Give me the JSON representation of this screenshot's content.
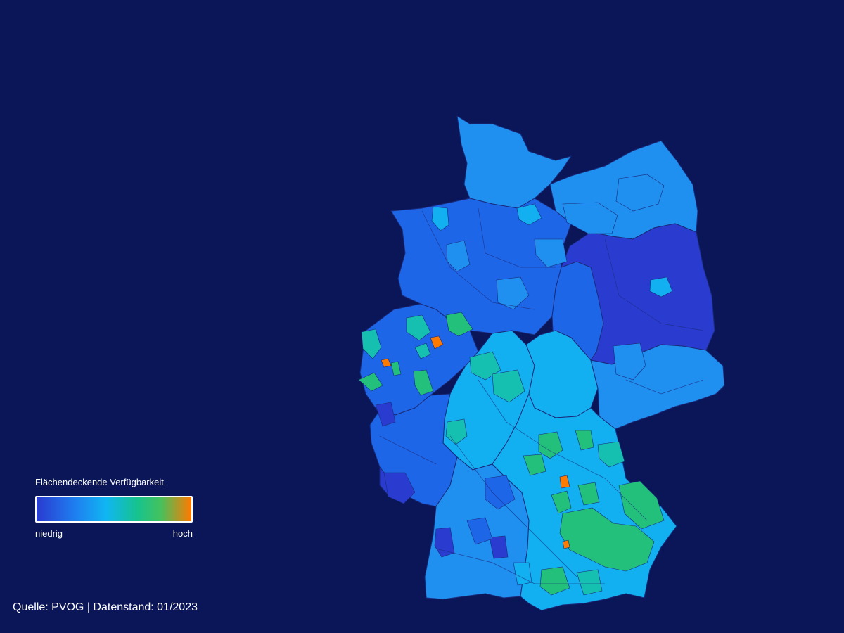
{
  "legend": {
    "title": "Flächendeckende Verfügbarkeit",
    "low_label": "niedrig",
    "high_label": "hoch",
    "colors": [
      "#2a3bd0",
      "#1e7ff0",
      "#10b6f2",
      "#16c38e",
      "#44c25e",
      "#ff7a00"
    ]
  },
  "source": "Quelle: PVOG | Datenstand: 01/2023",
  "map": {
    "subject": "Germany districts choropleth",
    "background_color": "#0b1658",
    "border_color": "#1a2a7a",
    "level_colors": {
      "very_low": "#2a3bd0",
      "low": "#1e66e8",
      "mid_low": "#1f8ff0",
      "mid": "#12b0f0",
      "mid_high": "#16c0b0",
      "high": "#22c07a",
      "very_high": "#ff7a00"
    },
    "regions": [
      {
        "name": "Schleswig-Holstein",
        "level": "mid_low"
      },
      {
        "name": "Mecklenburg-Vorpommern",
        "level": "mid_low"
      },
      {
        "name": "Niedersachsen",
        "level": "low"
      },
      {
        "name": "Brandenburg",
        "level": "very_low"
      },
      {
        "name": "Sachsen-Anhalt",
        "level": "low"
      },
      {
        "name": "Nordrhein-Westfalen",
        "level": "low"
      },
      {
        "name": "Hessen",
        "level": "mid"
      },
      {
        "name": "Thüringen",
        "level": "mid"
      },
      {
        "name": "Sachsen",
        "level": "mid_low"
      },
      {
        "name": "Rheinland-Pfalz",
        "level": "low"
      },
      {
        "name": "Saarland",
        "level": "very_low"
      },
      {
        "name": "Baden-Württemberg",
        "level": "mid_low"
      },
      {
        "name": "Bayern",
        "level": "mid"
      }
    ]
  }
}
